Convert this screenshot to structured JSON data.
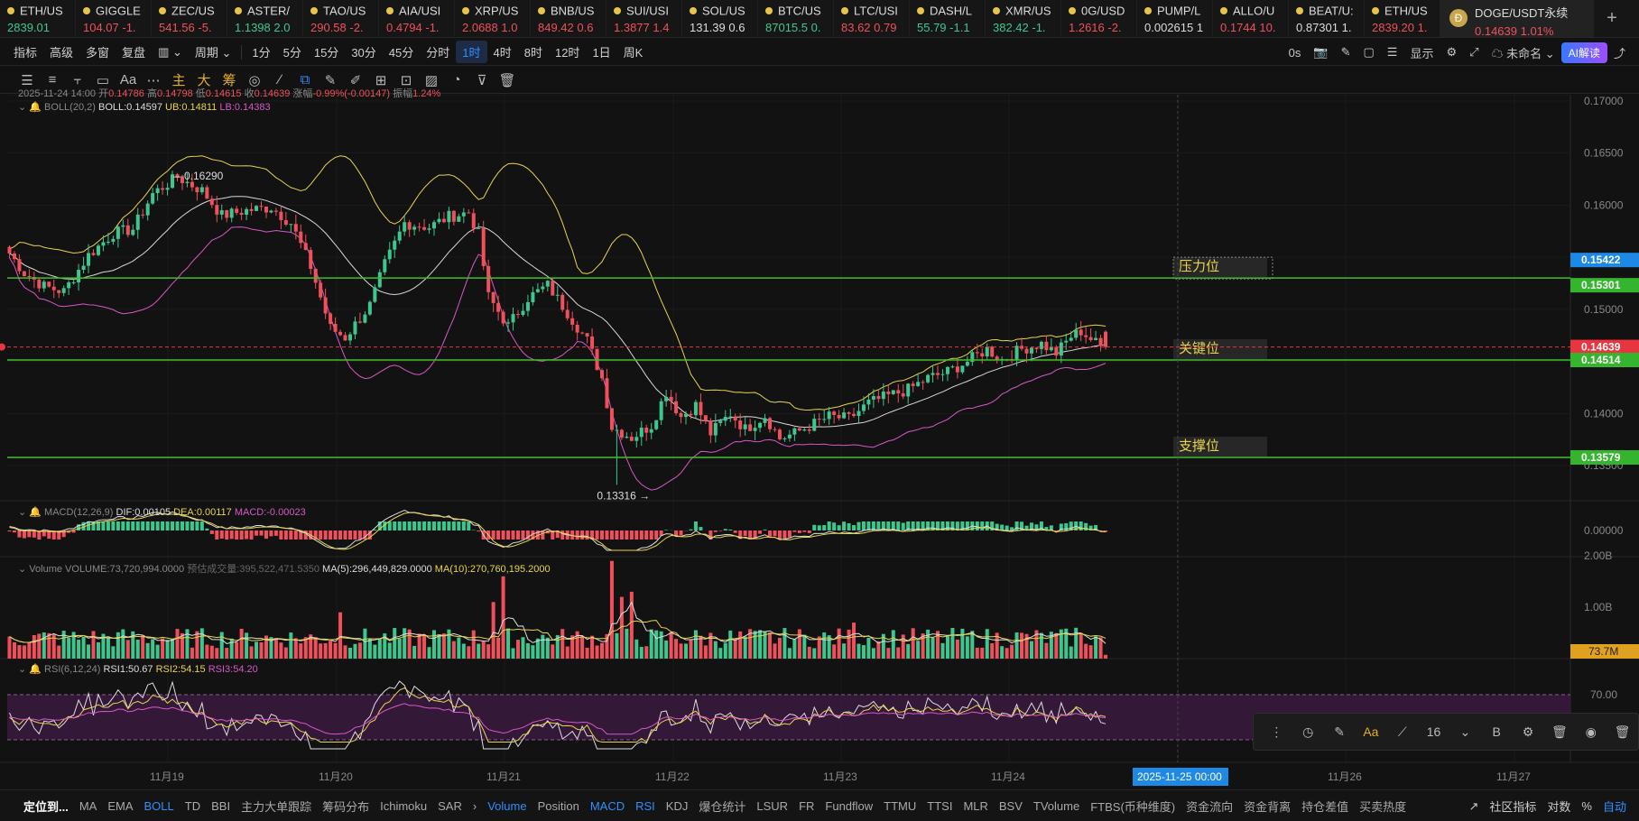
{
  "tickers": [
    {
      "sym": "ETH/US",
      "price": "2839.01",
      "dir": "up"
    },
    {
      "sym": "GIGGLE",
      "price": "104.07  -1.",
      "dir": "down"
    },
    {
      "sym": "ZEC/US",
      "price": "541.56  -5.",
      "dir": "down"
    },
    {
      "sym": "ASTER/",
      "price": "1.1398  2.0",
      "dir": "up"
    },
    {
      "sym": "TAO/US",
      "price": "290.58  -2.",
      "dir": "down"
    },
    {
      "sym": "AIA/USI",
      "price": "0.4794  -1.",
      "dir": "down"
    },
    {
      "sym": "XRP/US",
      "price": "2.0688  1.0",
      "dir": "down"
    },
    {
      "sym": "BNB/US",
      "price": "849.42  0.6",
      "dir": "down"
    },
    {
      "sym": "SUI/USI",
      "price": "1.3877  1.4",
      "dir": "down"
    },
    {
      "sym": "SOL/US",
      "price": "131.39  0.6",
      "dir": "flat"
    },
    {
      "sym": "BTC/US",
      "price": "87015.5  0.",
      "dir": "up"
    },
    {
      "sym": "LTC/USI",
      "price": "83.62  0.79",
      "dir": "down"
    },
    {
      "sym": "DASH/L",
      "price": "55.79  -1.1",
      "dir": "up"
    },
    {
      "sym": "XMR/US",
      "price": "382.42  -1.",
      "dir": "up"
    },
    {
      "sym": "0G/USD",
      "price": "1.2616  -2.",
      "dir": "down"
    },
    {
      "sym": "PUMP/L",
      "price": "0.002615  1",
      "dir": "flat"
    },
    {
      "sym": "ALLO/U",
      "price": "0.1744  10.",
      "dir": "down"
    },
    {
      "sym": "BEAT/U:",
      "price": "0.87301  1.",
      "dir": "flat"
    },
    {
      "sym": "ETH/US",
      "price": "2839.20  1.",
      "dir": "down"
    }
  ],
  "active_ticker": {
    "sym": "DOGE/USDT永续",
    "price": "0.14639  1.01%"
  },
  "toolbar1": {
    "items": [
      "指标",
      "高级",
      "多窗",
      "复盘",
      "▥ ⌄",
      "周期 ⌄",
      "1分",
      "5分",
      "15分",
      "30分",
      "45分",
      "分时",
      "1时",
      "4时",
      "8时",
      "12时",
      "1日",
      "周K"
    ],
    "active": "1时",
    "right": [
      "0s",
      "📷",
      "✎",
      "▢",
      "☰",
      "显示",
      "⚙",
      "⤢",
      "☁ 未命名 ⌄"
    ],
    "ai": "AI解读"
  },
  "toolbar2": {
    "items": [
      "☰",
      "≡",
      "⫟",
      "▭",
      "Aa",
      "⋯",
      "主",
      "大",
      "筹",
      "◎",
      "∕",
      "⧉",
      "✎",
      "✐",
      "⊞",
      "⊡",
      "▨",
      "◔",
      "⊽",
      "🗑"
    ]
  },
  "info": {
    "ohlc": {
      "date": "2025-11-24 14:00",
      "open_label": "开",
      "open": "0.14786",
      "high_label": "高",
      "high": "0.14798",
      "low_label": "低",
      "low": "0.14615",
      "close_label": "收",
      "close": "0.14639",
      "chg_label": "涨幅",
      "chg": "-0.99%(-0.00147)",
      "amp_label": "振幅",
      "amp": "1.24%"
    },
    "boll": {
      "name": "BOLL(20,2)",
      "mid": "BOLL:0.14597",
      "ub": "UB:0.14811",
      "lb": "LB:0.14383"
    },
    "macd": {
      "name": "MACD(12,26,9)",
      "dif": "DIF:0.00105",
      "dea": "DEA:0.00117",
      "macd": "MACD:-0.00023"
    },
    "volume": {
      "name": "Volume",
      "vol": "VOLUME:73,720,994.0000",
      "est": "预估成交量:395,522,471.5350",
      "ma5": "MA(5):296,449,829.0000",
      "ma10": "MA(10):270,760,195.2000"
    },
    "rsi": {
      "name": "RSI(6,12,24)",
      "r1": "RSI1:50.67",
      "r2": "RSI2:54.15",
      "r3": "RSI3:54.20"
    }
  },
  "price_axis": [
    "0.17000",
    "0.16500",
    "0.16000",
    "0.15500",
    "0.15000",
    "0.14500",
    "0.14000",
    "0.13500"
  ],
  "macd_axis": [
    "0.00000"
  ],
  "vol_axis": [
    "2.00B",
    "1.00B"
  ],
  "rsi_axis": [
    "70.00"
  ],
  "price_tags": [
    {
      "text": "0.15422",
      "color": "#1e88e5"
    },
    {
      "text": "0.15301",
      "color": "#35b52e"
    },
    {
      "text": "0.14639",
      "color": "#e8353f"
    },
    {
      "text": "0.14514",
      "color": "#35b52e"
    },
    {
      "text": "0.13579",
      "color": "#35b52e"
    }
  ],
  "vol_tag": "73.7M",
  "hlines": [
    {
      "label": "压力位",
      "price": 0.15301
    },
    {
      "label": "关键位",
      "price": 0.14514
    },
    {
      "label": "支撑位",
      "price": 0.13579
    }
  ],
  "annotations": {
    "high": "0.16290",
    "low": "0.13316 →"
  },
  "time_axis": [
    "11月19",
    "11月20",
    "11月21",
    "11月22",
    "11月23",
    "11月24",
    "2025-11-25 00:00",
    "11月26",
    "11月27"
  ],
  "chart_data": {
    "type": "candlestick",
    "symbol": "DOGE/USDT永续",
    "interval": "1时",
    "x_range": [
      "2025-11-18 04:00",
      "2025-11-24 14:00"
    ],
    "ylim": [
      0.1325,
      0.1706
    ],
    "anchors": [
      {
        "t": 0,
        "p": 0.156
      },
      {
        "t": 4,
        "p": 0.1535
      },
      {
        "t": 8,
        "p": 0.1522
      },
      {
        "t": 12,
        "p": 0.1517
      },
      {
        "t": 17,
        "p": 0.1552
      },
      {
        "t": 22,
        "p": 0.1573
      },
      {
        "t": 26,
        "p": 0.1577
      },
      {
        "t": 30,
        "p": 0.1611
      },
      {
        "t": 35,
        "p": 0.1627
      },
      {
        "t": 40,
        "p": 0.1614
      },
      {
        "t": 44,
        "p": 0.159
      },
      {
        "t": 49,
        "p": 0.1595
      },
      {
        "t": 54,
        "p": 0.1598
      },
      {
        "t": 58,
        "p": 0.1583
      },
      {
        "t": 62,
        "p": 0.1541
      },
      {
        "t": 66,
        "p": 0.1482
      },
      {
        "t": 69,
        "p": 0.1473
      },
      {
        "t": 74,
        "p": 0.1504
      },
      {
        "t": 77,
        "p": 0.1543
      },
      {
        "t": 81,
        "p": 0.1583
      },
      {
        "t": 86,
        "p": 0.1579
      },
      {
        "t": 90,
        "p": 0.1589
      },
      {
        "t": 94,
        "p": 0.1593
      },
      {
        "t": 96,
        "p": 0.1572
      },
      {
        "t": 98,
        "p": 0.1512
      },
      {
        "t": 102,
        "p": 0.1484
      },
      {
        "t": 106,
        "p": 0.1511
      },
      {
        "t": 110,
        "p": 0.1523
      },
      {
        "t": 114,
        "p": 0.1497
      },
      {
        "t": 118,
        "p": 0.147
      },
      {
        "t": 121,
        "p": 0.1434
      },
      {
        "t": 123,
        "p": 0.1387
      },
      {
        "t": 127,
        "p": 0.1377
      },
      {
        "t": 131,
        "p": 0.1389
      },
      {
        "t": 134,
        "p": 0.1421
      },
      {
        "t": 137,
        "p": 0.1397
      },
      {
        "t": 140,
        "p": 0.1408
      },
      {
        "t": 143,
        "p": 0.1381
      },
      {
        "t": 147,
        "p": 0.14
      },
      {
        "t": 150,
        "p": 0.1385
      },
      {
        "t": 154,
        "p": 0.1398
      },
      {
        "t": 157,
        "p": 0.1376
      },
      {
        "t": 160,
        "p": 0.1381
      },
      {
        "t": 163,
        "p": 0.1388
      },
      {
        "t": 167,
        "p": 0.1397
      },
      {
        "t": 171,
        "p": 0.1395
      },
      {
        "t": 175,
        "p": 0.141
      },
      {
        "t": 179,
        "p": 0.1417
      },
      {
        "t": 183,
        "p": 0.1423
      },
      {
        "t": 187,
        "p": 0.1434
      },
      {
        "t": 191,
        "p": 0.144
      },
      {
        "t": 195,
        "p": 0.145
      },
      {
        "t": 199,
        "p": 0.1462
      },
      {
        "t": 202,
        "p": 0.1452
      },
      {
        "t": 206,
        "p": 0.1462
      },
      {
        "t": 210,
        "p": 0.1467
      },
      {
        "t": 213,
        "p": 0.1458
      },
      {
        "t": 216,
        "p": 0.1474
      },
      {
        "t": 218,
        "p": 0.1479
      },
      {
        "t": 222,
        "p": 0.1464
      }
    ],
    "volume_spikes": [
      {
        "t": 67,
        "v": 0.9
      },
      {
        "t": 98,
        "v": 1.1
      },
      {
        "t": 100,
        "v": 1.6
      },
      {
        "t": 122,
        "v": 1.9
      },
      {
        "t": 124,
        "v": 1.2
      },
      {
        "t": 126,
        "v": 1.3
      },
      {
        "t": 171,
        "v": 0.7
      },
      {
        "t": 216,
        "v": 0.6
      }
    ],
    "indicators": [
      "BOLL(20,2)",
      "MACD(12,26,9)",
      "Volume",
      "RSI(6,12,24)"
    ]
  },
  "bottom": {
    "left": [
      "定位到...",
      "MA",
      "EMA",
      "BOLL",
      "TD",
      "BBI",
      "主力大单跟踪",
      "筹码分布",
      "Ichimoku",
      "SAR",
      "›",
      "Volume",
      "Position",
      "MACD",
      "RSI",
      "KDJ",
      "爆仓统计",
      "LSUR",
      "FR",
      "Fundflow",
      "TTMU",
      "TTSI",
      "MLR",
      "BSV",
      "TVolume",
      "FTBS(币种维度)",
      "资金流向",
      "资金背离",
      "持仓差值",
      "买卖热度"
    ],
    "on": [
      "BOLL",
      "Volume",
      "MACD",
      "RSI"
    ],
    "right": [
      "↗",
      "社区指标",
      "对数",
      "%",
      "自动"
    ]
  },
  "floatbar": {
    "items": [
      "⋮",
      "◷",
      "✎",
      "Aa",
      "⟋",
      "16",
      "⌄",
      "B",
      "⚙",
      "🗑",
      "◉",
      "🗑"
    ],
    "highlight": "Aa"
  }
}
